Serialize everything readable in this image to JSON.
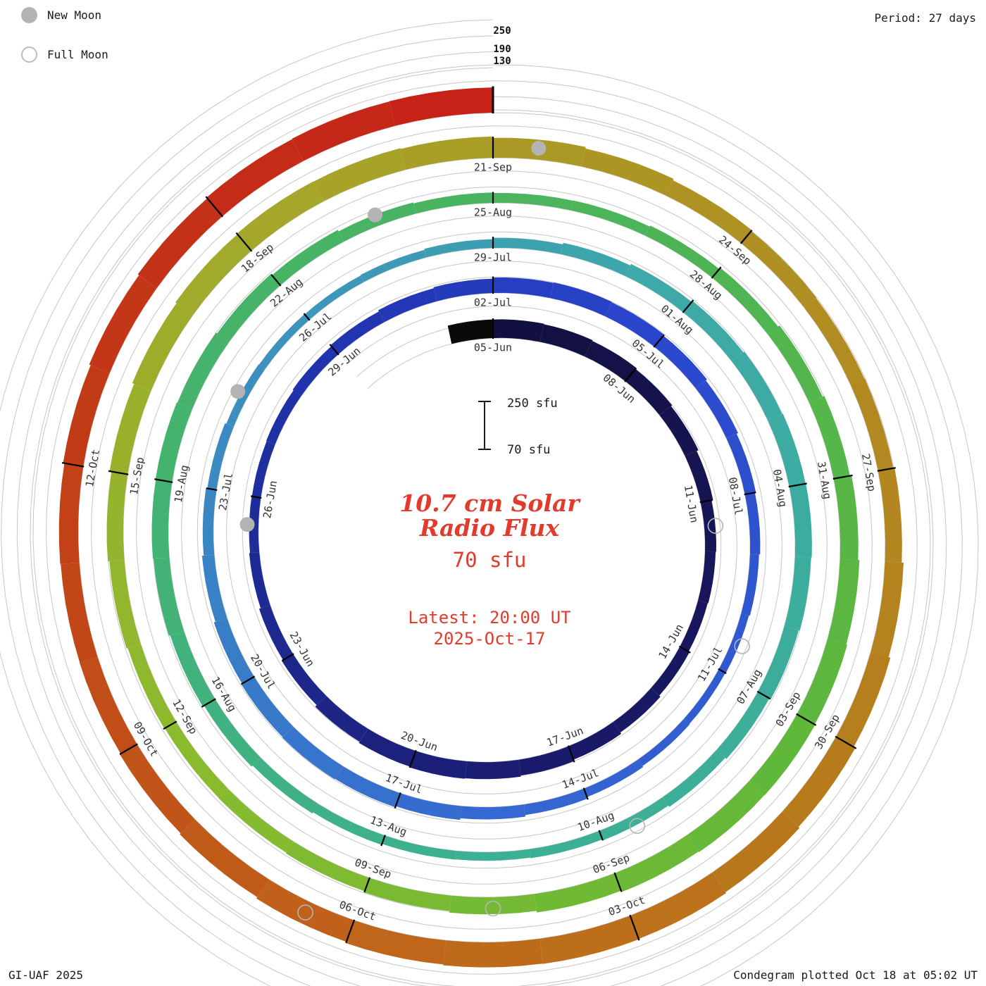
{
  "meta": {
    "credit": "GI-UAF 2025",
    "plotted": "Condegram plotted Oct 18 at 05:02 UT",
    "period_label": "Period: 27 days"
  },
  "legend": {
    "new_moon": "New Moon",
    "full_moon": "Full Moon"
  },
  "center": {
    "title_line1": "10.7 cm Solar",
    "title_line2": "Radio Flux",
    "value": "70 sfu",
    "latest_line1": "Latest: 20:00 UT",
    "latest_line2": "2025-Oct-17"
  },
  "scale": {
    "top_label": "250 sfu",
    "bottom_label": "70 sfu",
    "outer_ticks": [
      "250",
      "190",
      "130"
    ]
  },
  "chart_data": {
    "type": "spiral-bar (condegram)",
    "title": "10.7 cm Solar Radio Flux",
    "units": "sfu",
    "start_date": "2025-06-05",
    "end_date": "2025-10-17",
    "period_days": 27,
    "flux_baseline_sfu": 70,
    "flux_scale_max_sfu": 250,
    "grid_levels_sfu": [
      70,
      130,
      190,
      250
    ],
    "date_labels": [
      "05-Jun",
      "08-Jun",
      "11-Jun",
      "14-Jun",
      "17-Jun",
      "20-Jun",
      "23-Jun",
      "26-Jun",
      "29-Jun",
      "02-Jul",
      "05-Jul",
      "08-Jul",
      "11-Jul",
      "14-Jul",
      "17-Jul",
      "20-Jul",
      "23-Jul",
      "26-Jul",
      "29-Jul",
      "01-Aug",
      "04-Aug",
      "07-Aug",
      "10-Aug",
      "13-Aug",
      "16-Aug",
      "19-Aug",
      "22-Aug",
      "25-Aug",
      "28-Aug",
      "31-Aug",
      "03-Sep",
      "06-Sep",
      "09-Sep",
      "12-Sep",
      "15-Sep",
      "18-Sep",
      "21-Sep",
      "24-Sep",
      "27-Sep",
      "30-Sep",
      "03-Oct",
      "06-Oct",
      "09-Oct",
      "12-Oct"
    ],
    "daily_flux_sfu": [
      140,
      138,
      135,
      130,
      125,
      118,
      112,
      110,
      108,
      112,
      118,
      124,
      130,
      134,
      136,
      133,
      128,
      120,
      114,
      108,
      105,
      104,
      106,
      110,
      115,
      120,
      124,
      128,
      130,
      128,
      124,
      118,
      112,
      108,
      104,
      100,
      98,
      100,
      104,
      110,
      116,
      122,
      126,
      128,
      126,
      122,
      116,
      110,
      105,
      100,
      98,
      97,
      99,
      103,
      108,
      114,
      120,
      125,
      129,
      132,
      133,
      130,
      126,
      120,
      114,
      108,
      104,
      102,
      103,
      107,
      112,
      118,
      124,
      129,
      132,
      133,
      130,
      125,
      119,
      113,
      109,
      107,
      108,
      112,
      118,
      125,
      132,
      138,
      143,
      147,
      149,
      148,
      145,
      140,
      134,
      128,
      123,
      120,
      119,
      121,
      126,
      132,
      139,
      146,
      151,
      154,
      153,
      150,
      145,
      139,
      133,
      129,
      127,
      128,
      133,
      140,
      147,
      154,
      159,
      163,
      165,
      164,
      161,
      156,
      150,
      145,
      141,
      140,
      142,
      147,
      153,
      158,
      162,
      164,
      165
    ],
    "moons": {
      "new": [
        {
          "date": "25-Jun",
          "day": 20
        },
        {
          "date": "24-Jul",
          "day": 49
        },
        {
          "date": "23-Aug",
          "day": 79
        },
        {
          "date": "21-Sep",
          "day": 108
        }
      ],
      "full": [
        {
          "date": "11-Jun",
          "day": 6
        },
        {
          "date": "10-Jul",
          "day": 35
        },
        {
          "date": "09-Aug",
          "day": 65
        },
        {
          "date": "07-Sep",
          "day": 94
        },
        {
          "date": "06-Oct",
          "day": 123
        }
      ]
    },
    "colormap": [
      {
        "t": 0.0,
        "color": "#12103f"
      },
      {
        "t": 0.09,
        "color": "#1a1a6a"
      },
      {
        "t": 0.19,
        "color": "#2238b8"
      },
      {
        "t": 0.22,
        "color": "#2a46cc"
      },
      {
        "t": 0.3,
        "color": "#3568d2"
      },
      {
        "t": 0.38,
        "color": "#3d96bb"
      },
      {
        "t": 0.42,
        "color": "#3daaa8"
      },
      {
        "t": 0.5,
        "color": "#3cb092"
      },
      {
        "t": 0.56,
        "color": "#44b36e"
      },
      {
        "t": 0.62,
        "color": "#4db455"
      },
      {
        "t": 0.67,
        "color": "#60b83a"
      },
      {
        "t": 0.73,
        "color": "#8abb2e"
      },
      {
        "t": 0.78,
        "color": "#a4a829"
      },
      {
        "t": 0.81,
        "color": "#ad9524"
      },
      {
        "t": 0.86,
        "color": "#b5811d"
      },
      {
        "t": 0.91,
        "color": "#c0641a"
      },
      {
        "t": 0.96,
        "color": "#c23a17"
      },
      {
        "t": 1.0,
        "color": "#c62018"
      }
    ],
    "style": {
      "grid_color": "#c6c6c6",
      "tick_color": "#000000",
      "label_color": "#333333",
      "moon_gray": "#b3b3b3",
      "accent_red": "#e23b2e"
    }
  }
}
